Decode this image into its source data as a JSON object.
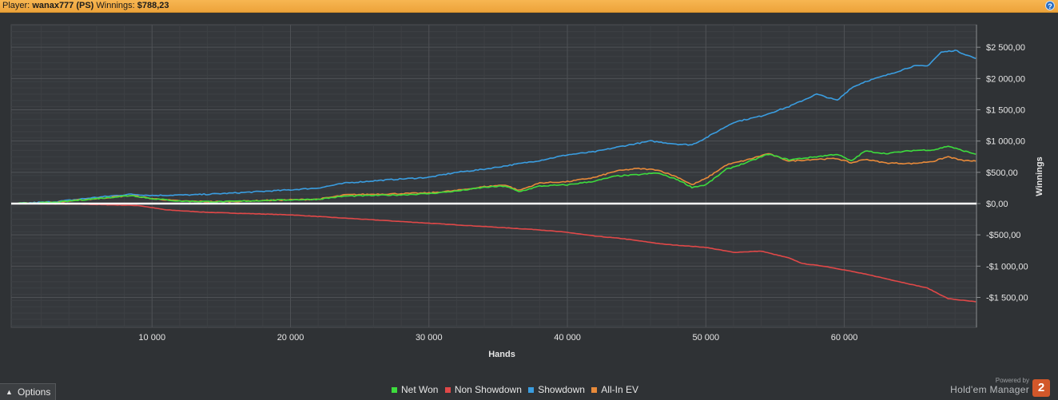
{
  "header": {
    "player_label": "Player:",
    "player": "wanax777 (PS)",
    "winnings_label": "Winnings:",
    "winnings": "$788,23",
    "help_icon": "help-circle-icon"
  },
  "chart_data": {
    "type": "line",
    "xlabel": "Hands",
    "ylabel": "Winnings",
    "xlim": [
      0,
      69500
    ],
    "ylim": [
      -1950,
      2850
    ],
    "x_ticks": [
      {
        "value": 10000,
        "label": "10 000"
      },
      {
        "value": 20000,
        "label": "20 000"
      },
      {
        "value": 30000,
        "label": "30 000"
      },
      {
        "value": 40000,
        "label": "40 000"
      },
      {
        "value": 50000,
        "label": "50 000"
      },
      {
        "value": 60000,
        "label": "60 000"
      }
    ],
    "y_ticks": [
      {
        "value": 2500,
        "label": "$2 500,00"
      },
      {
        "value": 2000,
        "label": "$2 000,00"
      },
      {
        "value": 1500,
        "label": "$1 500,00"
      },
      {
        "value": 1000,
        "label": "$1 000,00"
      },
      {
        "value": 500,
        "label": "$500,00"
      },
      {
        "value": 0,
        "label": "$0,00"
      },
      {
        "value": -500,
        "label": "-$500,00"
      },
      {
        "value": -1000,
        "label": "-$1 000,00"
      },
      {
        "value": -1500,
        "label": "-$1 500,00"
      }
    ],
    "grid": true,
    "legend_position": "bottom",
    "series": [
      {
        "name": "Net Won",
        "color": "#3ddc3d",
        "x": [
          0,
          3000,
          6000,
          8500,
          10000,
          12000,
          15000,
          18000,
          20000,
          22000,
          24000,
          26000,
          28000,
          30000,
          32000,
          34000,
          35500,
          36500,
          38000,
          40000,
          42000,
          43500,
          45000,
          46500,
          48000,
          49000,
          50000,
          51500,
          53000,
          54500,
          56000,
          58000,
          59500,
          60500,
          61500,
          63000,
          65000,
          66500,
          67500,
          68500,
          69500
        ],
        "y": [
          0,
          20,
          80,
          130,
          80,
          40,
          30,
          50,
          60,
          70,
          120,
          130,
          140,
          160,
          200,
          260,
          280,
          190,
          280,
          300,
          360,
          440,
          460,
          490,
          380,
          260,
          300,
          550,
          660,
          790,
          700,
          750,
          790,
          680,
          840,
          800,
          850,
          860,
          920,
          850,
          790
        ]
      },
      {
        "name": "Non Showdown",
        "color": "#e04848",
        "x": [
          0,
          5000,
          9000,
          11000,
          14000,
          17000,
          20000,
          23000,
          26000,
          29000,
          32000,
          35000,
          38000,
          40000,
          42000,
          44000,
          47000,
          50000,
          52000,
          54000,
          56000,
          57000,
          58500,
          60000,
          62000,
          64000,
          66000,
          67500,
          69500
        ],
        "y": [
          0,
          -10,
          -30,
          -100,
          -140,
          -160,
          -180,
          -220,
          -260,
          -300,
          -340,
          -380,
          -420,
          -460,
          -520,
          -560,
          -650,
          -700,
          -780,
          -760,
          -870,
          -960,
          -1000,
          -1060,
          -1150,
          -1250,
          -1350,
          -1520,
          -1570
        ]
      },
      {
        "name": "Showdown",
        "color": "#3a9de0",
        "x": [
          0,
          3000,
          6000,
          8500,
          10000,
          13000,
          16000,
          20000,
          22000,
          24000,
          27000,
          30000,
          32000,
          34000,
          36000,
          38000,
          40000,
          42000,
          44000,
          46000,
          48000,
          49000,
          50000,
          52000,
          54000,
          56000,
          58000,
          59500,
          60500,
          61500,
          63000,
          65000,
          66000,
          67000,
          68000,
          69500
        ],
        "y": [
          0,
          30,
          100,
          150,
          130,
          140,
          170,
          220,
          250,
          330,
          380,
          420,
          500,
          550,
          620,
          690,
          780,
          830,
          920,
          1000,
          950,
          940,
          1050,
          1300,
          1400,
          1550,
          1750,
          1650,
          1850,
          1950,
          2050,
          2200,
          2200,
          2420,
          2450,
          2320
        ]
      },
      {
        "name": "All-In EV",
        "color": "#e88a3a",
        "x": [
          0,
          3000,
          6000,
          8500,
          10000,
          12000,
          15000,
          18000,
          20000,
          22000,
          24000,
          26000,
          28000,
          30000,
          32000,
          34000,
          35500,
          36500,
          38000,
          40000,
          42000,
          43500,
          45000,
          46500,
          48000,
          49000,
          50000,
          51500,
          53000,
          54500,
          56000,
          58000,
          59500,
          60500,
          61500,
          63000,
          65000,
          66500,
          67500,
          68500,
          69500
        ],
        "y": [
          0,
          20,
          80,
          130,
          80,
          40,
          30,
          50,
          60,
          70,
          140,
          150,
          160,
          170,
          210,
          270,
          300,
          210,
          330,
          350,
          420,
          520,
          560,
          540,
          420,
          300,
          400,
          620,
          700,
          800,
          680,
          710,
          720,
          650,
          710,
          650,
          640,
          680,
          750,
          690,
          680
        ]
      }
    ]
  },
  "legend": [
    {
      "label": "Net Won",
      "color": "#3ddc3d"
    },
    {
      "label": "Non Showdown",
      "color": "#e04848"
    },
    {
      "label": "Showdown",
      "color": "#3a9de0"
    },
    {
      "label": "All-In EV",
      "color": "#e88a3a"
    }
  ],
  "options_button": {
    "label": "Options",
    "icon": "chevron-up-icon"
  },
  "brand": {
    "powered_by": "Powered by",
    "name": "Hold'em Manager",
    "logo_text": "2"
  }
}
